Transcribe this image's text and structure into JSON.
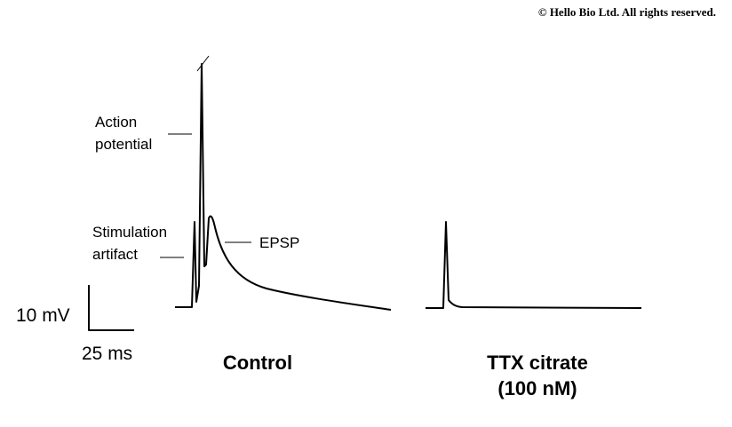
{
  "copyright": "© Hello Bio Ltd. All rights reserved.",
  "annotations": {
    "action_potential": [
      "Action",
      "potential"
    ],
    "stimulation_artifact": [
      "Stimulation",
      "artifact"
    ],
    "epsp": "EPSP"
  },
  "scale_bar": {
    "vertical": "10 mV",
    "horizontal": "25 ms"
  },
  "panels": [
    {
      "label": [
        "Control"
      ]
    },
    {
      "label": [
        "TTX citrate",
        "(100 nM)"
      ]
    }
  ]
}
